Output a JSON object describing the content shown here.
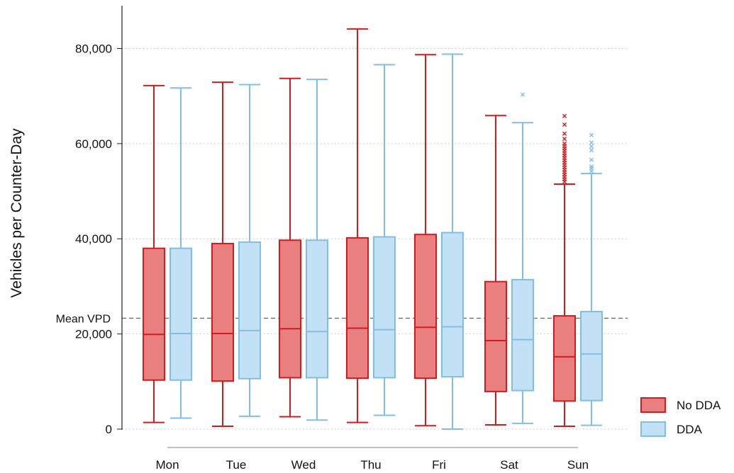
{
  "chart_data": {
    "type": "box",
    "title": "",
    "xlabel": "",
    "ylabel": "Vehicles per Counter-Day",
    "ylim": [
      0,
      89000
    ],
    "yticks": [
      0,
      20000,
      40000,
      60000,
      80000
    ],
    "ytick_labels": [
      "0",
      "20,000",
      "40,000",
      "60,000",
      "80,000"
    ],
    "grid": "horizontal dotted",
    "categories": [
      "Mon",
      "Tue",
      "Wed",
      "Thu",
      "Fri",
      "Sat",
      "Sun"
    ],
    "reference_line": {
      "label": "Mean VPD",
      "value": 23300,
      "style": "dashed"
    },
    "legend_position": "bottom-right",
    "series": [
      {
        "name": "No DDA",
        "color": "#d7191c",
        "fill": "#e98080",
        "boxes": [
          {
            "min": 1400,
            "q1": 10300,
            "median": 19900,
            "q3": 38000,
            "max": 72200,
            "outliers": []
          },
          {
            "min": 600,
            "q1": 10100,
            "median": 20100,
            "q3": 39000,
            "max": 72900,
            "outliers": []
          },
          {
            "min": 2600,
            "q1": 10800,
            "median": 21100,
            "q3": 39700,
            "max": 73700,
            "outliers": []
          },
          {
            "min": 1400,
            "q1": 10700,
            "median": 21200,
            "q3": 40200,
            "max": 84100,
            "outliers": []
          },
          {
            "min": 700,
            "q1": 10700,
            "median": 21400,
            "q3": 40900,
            "max": 78700,
            "outliers": []
          },
          {
            "min": 900,
            "q1": 7900,
            "median": 18600,
            "q3": 31000,
            "max": 65900,
            "outliers": []
          },
          {
            "min": 600,
            "q1": 5900,
            "median": 15200,
            "q3": 23800,
            "max": 51500,
            "outliers": [
              52000,
              52500,
              53000,
              53500,
              54000,
              54500,
              55000,
              55500,
              56000,
              56500,
              57000,
              57500,
              58000,
              58500,
              59000,
              59500,
              60000,
              61000,
              62100,
              64000,
              65800
            ]
          }
        ]
      },
      {
        "name": "DDA",
        "color": "#7fbfe6",
        "fill": "#c3e1f4",
        "boxes": [
          {
            "min": 2300,
            "q1": 10300,
            "median": 20100,
            "q3": 38000,
            "max": 71700,
            "outliers": []
          },
          {
            "min": 2700,
            "q1": 10600,
            "median": 20700,
            "q3": 39300,
            "max": 72400,
            "outliers": []
          },
          {
            "min": 1900,
            "q1": 10800,
            "median": 20500,
            "q3": 39700,
            "max": 73500,
            "outliers": []
          },
          {
            "min": 2900,
            "q1": 10800,
            "median": 20900,
            "q3": 40400,
            "max": 76600,
            "outliers": []
          },
          {
            "min": 0,
            "q1": 11000,
            "median": 21500,
            "q3": 41300,
            "max": 78800,
            "outliers": []
          },
          {
            "min": 1200,
            "q1": 8100,
            "median": 18800,
            "q3": 31400,
            "max": 64400,
            "outliers": [
              70300
            ]
          },
          {
            "min": 800,
            "q1": 6000,
            "median": 15800,
            "q3": 24700,
            "max": 53700,
            "outliers": [
              54200,
              54800,
              55200,
              56600,
              58600,
              59400,
              60200,
              61800
            ]
          }
        ]
      }
    ]
  }
}
